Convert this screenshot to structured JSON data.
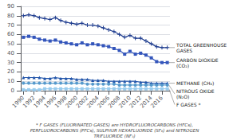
{
  "chart_data": {
    "type": "line",
    "x": [
      1990,
      1991,
      1992,
      1993,
      1994,
      1995,
      1996,
      1997,
      1998,
      1999,
      2000,
      2001,
      2002,
      2003,
      2004,
      2005,
      2006,
      2007,
      2008,
      2009,
      2010,
      2011,
      2012,
      2013,
      2014,
      2015,
      2016,
      2017
    ],
    "xlim": [
      1989.5,
      2017.5
    ],
    "xticks": [
      1990,
      1992,
      1994,
      1996,
      1998,
      2000,
      2002,
      2004,
      2006,
      2008,
      2010,
      2012,
      2014,
      2016
    ],
    "ylim": [
      0,
      90
    ],
    "yticks": [
      0,
      10,
      20,
      30,
      40,
      50,
      60,
      70,
      80,
      90
    ],
    "grid": true,
    "series": [
      {
        "name": "TOTAL GREENHOUSE\nGASES",
        "color": "#1f3d8f",
        "marker": "plus",
        "values": [
          80,
          81,
          80,
          78,
          77,
          76,
          78,
          75,
          73,
          72,
          71,
          72,
          70,
          70,
          69,
          67,
          65,
          63,
          60,
          57,
          59,
          56,
          56,
          53,
          50,
          47,
          46,
          46
        ]
      },
      {
        "name": "CARBON DIOXIDE\n(CO₂)",
        "color": "#3355bb",
        "marker": "square",
        "values": [
          57,
          58,
          57,
          55,
          54,
          53,
          54,
          52,
          51,
          50,
          49,
          51,
          49,
          50,
          49,
          48,
          47,
          45,
          43,
          39,
          42,
          39,
          40,
          38,
          35,
          31,
          30,
          30
        ]
      },
      {
        "name": "METHANE (CH₄)",
        "color": "#2255aa",
        "marker": "triangle",
        "values": [
          14,
          14,
          14,
          14,
          13,
          13,
          14,
          13,
          13,
          13,
          12,
          12,
          12,
          11,
          11,
          11,
          10,
          10,
          10,
          10,
          10,
          10,
          9,
          9,
          8,
          8,
          8,
          8
        ]
      },
      {
        "name": "NITROUS OXIDE\n(N₂O)",
        "color": "#5599cc",
        "marker": "circle",
        "values": [
          8,
          8,
          8,
          8,
          8,
          8,
          8,
          8,
          8,
          8,
          8,
          8,
          7,
          7,
          7,
          7,
          7,
          7,
          6,
          6,
          6,
          6,
          6,
          6,
          6,
          6,
          6,
          6
        ]
      },
      {
        "name": "F GASES *",
        "color": "#99ccee",
        "marker": "square",
        "values": [
          1,
          1,
          1,
          1,
          2,
          2,
          2,
          2,
          2,
          2,
          2,
          2,
          2,
          2,
          2,
          2,
          2,
          2,
          2,
          2,
          2,
          2,
          2,
          2,
          2,
          2,
          2,
          2
        ]
      }
    ],
    "footnote": "* F GASES (FLUORINATED GASES) are HYDROFLUOROCARBONS (HFCs),\nPERFLUOROCARBONS (PFCs), SULPHUR HEXAFLUORIDE (SF₆) and NITROGEN\nTRIFLUORIDE (NF₃)"
  }
}
